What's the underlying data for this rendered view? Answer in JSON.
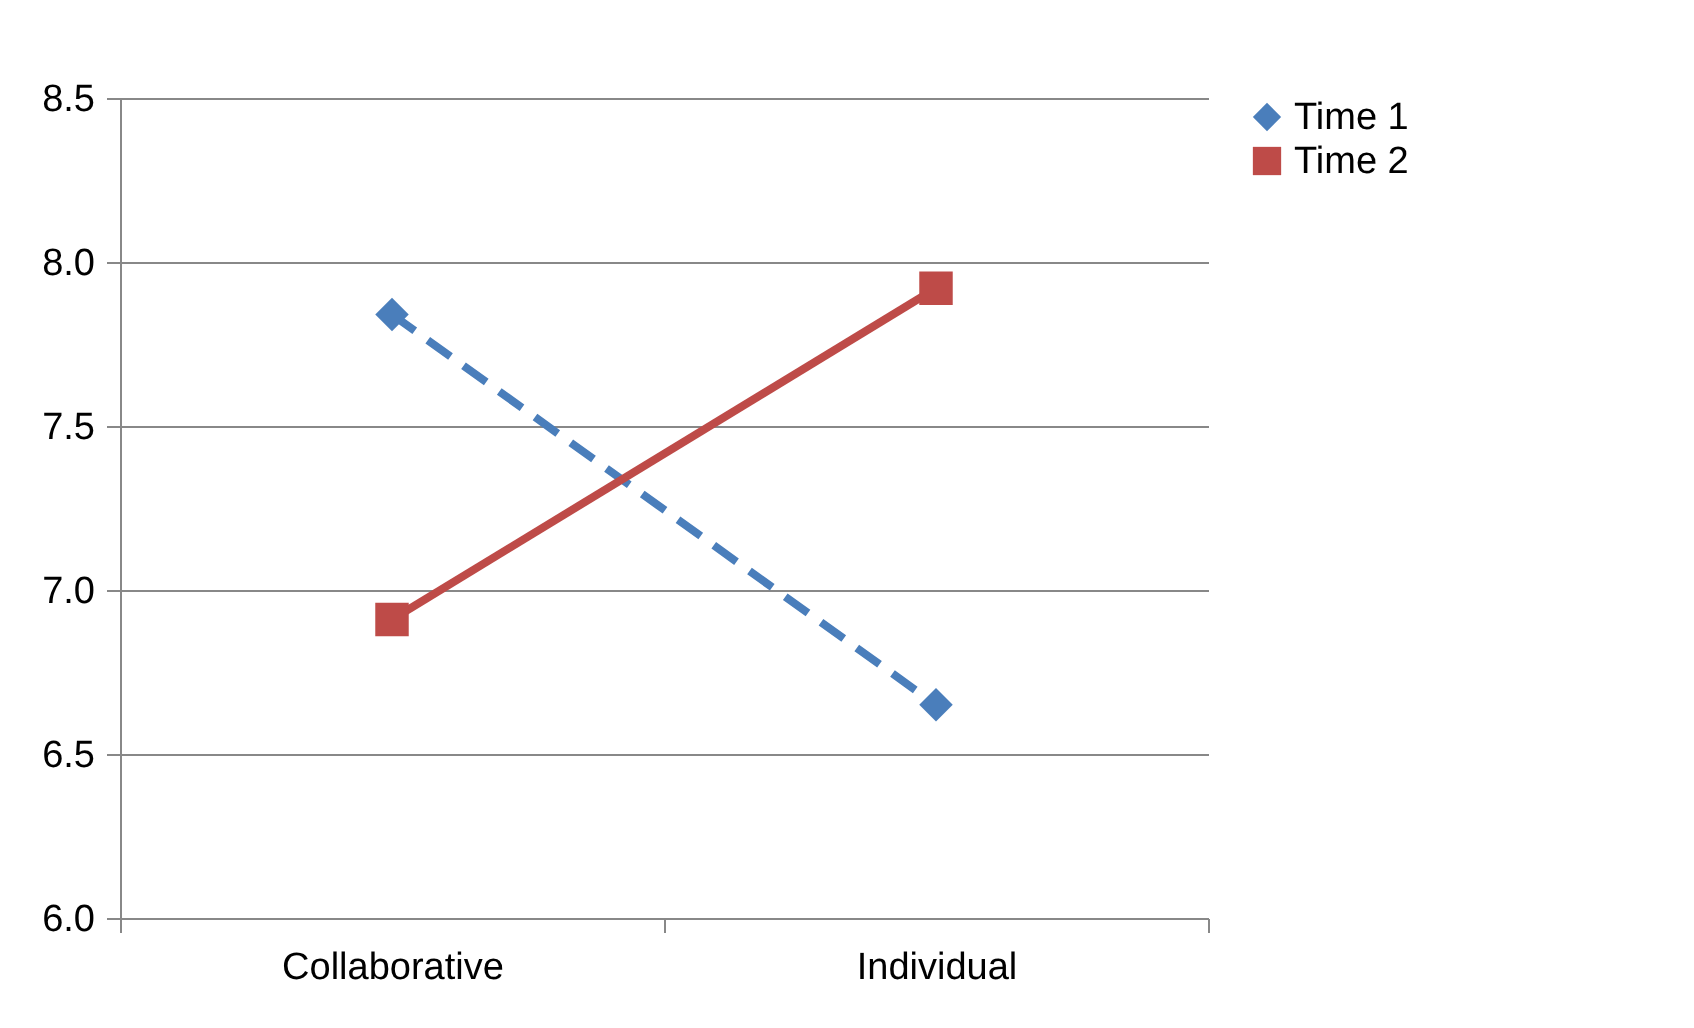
{
  "chart_data": {
    "type": "line",
    "categories": [
      "Collaborative",
      "Individual"
    ],
    "series": [
      {
        "name": "Time 1",
        "color": "#4a7ebb",
        "values": [
          7.84,
          6.65
        ],
        "marker": "diamond",
        "line_style": "dashed"
      },
      {
        "name": "Time 2",
        "color": "#be4b48",
        "values": [
          6.91,
          7.92
        ],
        "marker": "square",
        "line_style": "solid"
      }
    ],
    "ylim": [
      6.0,
      8.5
    ],
    "yticks": [
      {
        "value": 6.0,
        "label": "6.0"
      },
      {
        "value": 6.5,
        "label": "6.5"
      },
      {
        "value": 7.0,
        "label": "7.0"
      },
      {
        "value": 7.5,
        "label": "7.5"
      },
      {
        "value": 8.0,
        "label": "8.0"
      },
      {
        "value": 8.5,
        "label": "8.5"
      }
    ],
    "grid": "y",
    "legend": "right"
  }
}
